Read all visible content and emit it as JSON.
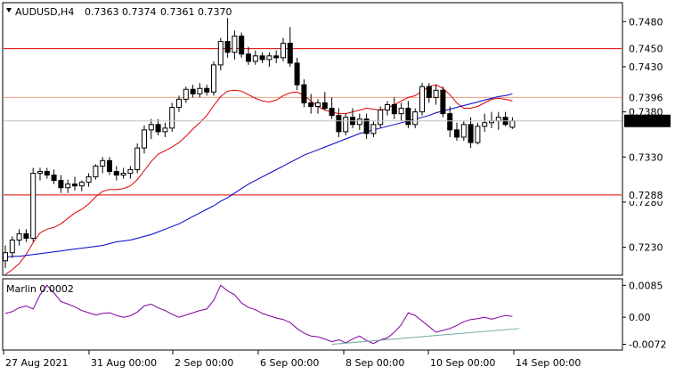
{
  "chart_data": {
    "type": "candlestick",
    "symbol": "AUDUSD,H4",
    "ohlc_header": [
      "0.7363",
      "0.7374",
      "0.7361",
      "0.7370"
    ],
    "ylim": [
      0.72,
      0.75
    ],
    "y_ticks": [
      "0.7480",
      "0.7430",
      "0.7380",
      "0.7330",
      "0.7280",
      "0.7230"
    ],
    "x_ticks": [
      "27 Aug 2021",
      "31 Aug 00:00",
      "2 Sep 00:00",
      "6 Sep 00:00",
      "8 Sep 00:00",
      "10 Sep 00:00",
      "14 Sep 00:00"
    ],
    "levels": [
      {
        "label": "0.7450",
        "value": 0.745,
        "color": "#e00000"
      },
      {
        "label": "0.7396",
        "value": 0.7396,
        "color": "#f0a080"
      },
      {
        "label": "0.7288",
        "value": 0.7288,
        "color": "#e00000"
      }
    ],
    "price_tag": {
      "label": "0.7370",
      "value": 0.737
    },
    "candles": [
      [
        0.7215,
        0.7232,
        0.7207,
        0.7224
      ],
      [
        0.7224,
        0.7242,
        0.7218,
        0.7238
      ],
      [
        0.7238,
        0.725,
        0.7232,
        0.7245
      ],
      [
        0.7245,
        0.725,
        0.7236,
        0.724
      ],
      [
        0.724,
        0.7318,
        0.7236,
        0.7312
      ],
      [
        0.7312,
        0.7318,
        0.7304,
        0.7314
      ],
      [
        0.7314,
        0.7318,
        0.7306,
        0.731
      ],
      [
        0.731,
        0.7316,
        0.73,
        0.7304
      ],
      [
        0.7304,
        0.731,
        0.729,
        0.7296
      ],
      [
        0.7296,
        0.7305,
        0.729,
        0.73
      ],
      [
        0.73,
        0.7308,
        0.7293,
        0.7298
      ],
      [
        0.7298,
        0.7304,
        0.7292,
        0.7302
      ],
      [
        0.7302,
        0.7312,
        0.7297,
        0.7308
      ],
      [
        0.7308,
        0.7322,
        0.7305,
        0.732
      ],
      [
        0.732,
        0.733,
        0.7312,
        0.7326
      ],
      [
        0.7326,
        0.733,
        0.731,
        0.7314
      ],
      [
        0.7314,
        0.732,
        0.7304,
        0.731
      ],
      [
        0.731,
        0.7318,
        0.7306,
        0.7312
      ],
      [
        0.7312,
        0.732,
        0.7306,
        0.7316
      ],
      [
        0.7316,
        0.7345,
        0.7312,
        0.734
      ],
      [
        0.734,
        0.7365,
        0.7334,
        0.736
      ],
      [
        0.736,
        0.7372,
        0.735,
        0.7366
      ],
      [
        0.7366,
        0.7372,
        0.7354,
        0.7358
      ],
      [
        0.7358,
        0.7368,
        0.7352,
        0.7362
      ],
      [
        0.7362,
        0.739,
        0.7358,
        0.7385
      ],
      [
        0.7385,
        0.7398,
        0.738,
        0.7394
      ],
      [
        0.7394,
        0.7408,
        0.739,
        0.7405
      ],
      [
        0.7405,
        0.741,
        0.7396,
        0.74
      ],
      [
        0.74,
        0.7412,
        0.7396,
        0.7406
      ],
      [
        0.7406,
        0.741,
        0.7398,
        0.7402
      ],
      [
        0.7402,
        0.7436,
        0.7398,
        0.7432
      ],
      [
        0.7432,
        0.7462,
        0.7426,
        0.7458
      ],
      [
        0.7458,
        0.7484,
        0.744,
        0.7446
      ],
      [
        0.7446,
        0.747,
        0.7438,
        0.7464
      ],
      [
        0.7464,
        0.7468,
        0.744,
        0.7444
      ],
      [
        0.7444,
        0.7452,
        0.7432,
        0.7436
      ],
      [
        0.7436,
        0.7448,
        0.7432,
        0.7442
      ],
      [
        0.7442,
        0.7446,
        0.7434,
        0.7438
      ],
      [
        0.7438,
        0.7446,
        0.743,
        0.7442
      ],
      [
        0.7442,
        0.7448,
        0.7434,
        0.744
      ],
      [
        0.744,
        0.7462,
        0.7436,
        0.7456
      ],
      [
        0.7456,
        0.7474,
        0.743,
        0.7434
      ],
      [
        0.7434,
        0.744,
        0.7404,
        0.741
      ],
      [
        0.741,
        0.7416,
        0.7385,
        0.739
      ],
      [
        0.739,
        0.74,
        0.7378,
        0.7386
      ],
      [
        0.7386,
        0.7394,
        0.7378,
        0.739
      ],
      [
        0.739,
        0.7402,
        0.7382,
        0.7384
      ],
      [
        0.7384,
        0.7396,
        0.7372,
        0.7376
      ],
      [
        0.7376,
        0.7384,
        0.7352,
        0.7358
      ],
      [
        0.7358,
        0.7378,
        0.7354,
        0.7374
      ],
      [
        0.7374,
        0.7384,
        0.7362,
        0.7366
      ],
      [
        0.7366,
        0.7378,
        0.736,
        0.7372
      ],
      [
        0.7372,
        0.7378,
        0.735,
        0.7356
      ],
      [
        0.7356,
        0.737,
        0.7352,
        0.7366
      ],
      [
        0.7366,
        0.7386,
        0.7362,
        0.7382
      ],
      [
        0.7382,
        0.7392,
        0.7376,
        0.7388
      ],
      [
        0.7388,
        0.7396,
        0.7372,
        0.7378
      ],
      [
        0.7378,
        0.739,
        0.737,
        0.7384
      ],
      [
        0.7384,
        0.7392,
        0.7362,
        0.7366
      ],
      [
        0.7366,
        0.7384,
        0.7362,
        0.738
      ],
      [
        0.738,
        0.7412,
        0.7376,
        0.7408
      ],
      [
        0.7408,
        0.7412,
        0.739,
        0.7396
      ],
      [
        0.7396,
        0.741,
        0.7388,
        0.7404
      ],
      [
        0.7404,
        0.7408,
        0.7374,
        0.7378
      ],
      [
        0.7378,
        0.7386,
        0.7352,
        0.736
      ],
      [
        0.736,
        0.7368,
        0.7348,
        0.7352
      ],
      [
        0.7352,
        0.737,
        0.7348,
        0.7366
      ],
      [
        0.7366,
        0.7374,
        0.734,
        0.7346
      ],
      [
        0.7346,
        0.7368,
        0.7344,
        0.7364
      ],
      [
        0.7364,
        0.7378,
        0.7358,
        0.7368
      ],
      [
        0.7368,
        0.738,
        0.7362,
        0.737
      ],
      [
        0.737,
        0.738,
        0.736,
        0.7374
      ],
      [
        0.7374,
        0.738,
        0.7364,
        0.7366
      ],
      [
        0.7363,
        0.7374,
        0.7361,
        0.737
      ]
    ],
    "series": [
      {
        "name": "",
        "color": "#e00000",
        "values": [
          0.72,
          0.7205,
          0.7212,
          0.7222,
          0.7235,
          0.7246,
          0.725,
          0.7252,
          0.7256,
          0.7262,
          0.7268,
          0.7272,
          0.7278,
          0.7286,
          0.7292,
          0.7294,
          0.7294,
          0.7295,
          0.7298,
          0.7305,
          0.7315,
          0.7325,
          0.7333,
          0.7337,
          0.7341,
          0.7346,
          0.7353,
          0.7361,
          0.7368,
          0.7376,
          0.7387,
          0.7397,
          0.7403,
          0.7404,
          0.7403,
          0.7399,
          0.7395,
          0.7392,
          0.7391,
          0.7393,
          0.7398,
          0.7401,
          0.7402,
          0.7398,
          0.7392,
          0.7386,
          0.7382,
          0.738,
          0.7378,
          0.7378,
          0.738,
          0.7382,
          0.7384,
          0.7383,
          0.7382,
          0.7384,
          0.7388,
          0.7392,
          0.7396,
          0.7398,
          0.7403,
          0.7408,
          0.741,
          0.7406,
          0.7399,
          0.739,
          0.7384,
          0.7384,
          0.7386,
          0.739,
          0.7394,
          0.7395,
          0.7394,
          0.7392
        ]
      },
      {
        "name": "",
        "color": "#0000cc",
        "values": [
          0.7219,
          0.722,
          0.722,
          0.7221,
          0.7222,
          0.7223,
          0.7224,
          0.7225,
          0.7226,
          0.7227,
          0.7228,
          0.7229,
          0.723,
          0.7231,
          0.7232,
          0.7234,
          0.7236,
          0.7237,
          0.7238,
          0.724,
          0.7242,
          0.7244,
          0.7247,
          0.725,
          0.7253,
          0.7256,
          0.726,
          0.7264,
          0.7268,
          0.7272,
          0.7276,
          0.7281,
          0.7285,
          0.729,
          0.7295,
          0.73,
          0.7304,
          0.7308,
          0.7312,
          0.7316,
          0.732,
          0.7324,
          0.7328,
          0.7332,
          0.7335,
          0.7338,
          0.7341,
          0.7344,
          0.7347,
          0.735,
          0.7353,
          0.7356,
          0.7358,
          0.736,
          0.7362,
          0.7364,
          0.7366,
          0.7368,
          0.737,
          0.7372,
          0.7374,
          0.7376,
          0.7379,
          0.7381,
          0.7383,
          0.7385,
          0.7387,
          0.7389,
          0.7391,
          0.7393,
          0.7395,
          0.7397,
          0.7398,
          0.74
        ]
      }
    ],
    "indicator": {
      "label": "Marlin 0.0002",
      "ylim": [
        -0.0085,
        0.01
      ],
      "y_ticks": [
        "0.0085",
        "0.00",
        "-0.0072"
      ],
      "color": "#8000a0",
      "values": [
        0.001,
        0.0015,
        0.0025,
        0.003,
        0.0022,
        0.006,
        0.0085,
        0.0065,
        0.0042,
        0.0035,
        0.0028,
        0.0018,
        0.0012,
        0.0006,
        0.001,
        0.0012,
        0.0005,
        0.0,
        0.0004,
        0.0014,
        0.003,
        0.0035,
        0.0025,
        0.0018,
        0.0008,
        0.0,
        0.0006,
        0.0012,
        0.0018,
        0.0022,
        0.0045,
        0.0085,
        0.007,
        0.006,
        0.0038,
        0.0026,
        0.002,
        0.001,
        0.0004,
        -0.0002,
        -0.0006,
        -0.0014,
        -0.003,
        -0.0042,
        -0.005,
        -0.0052,
        -0.0058,
        -0.0065,
        -0.006,
        -0.0068,
        -0.0058,
        -0.005,
        -0.0062,
        -0.007,
        -0.006,
        -0.0055,
        -0.004,
        -0.002,
        0.0012,
        0.0005,
        -0.001,
        -0.0025,
        -0.004,
        -0.0035,
        -0.003,
        -0.0022,
        -0.0012,
        -0.0006,
        -0.0004,
        0.0,
        -0.0005,
        0.0,
        0.0005,
        0.0002
      ],
      "trendline": {
        "color": "#70a8a0",
        "from": [
          47,
          -0.0072
        ],
        "to": [
          74,
          -0.003
        ]
      }
    }
  }
}
